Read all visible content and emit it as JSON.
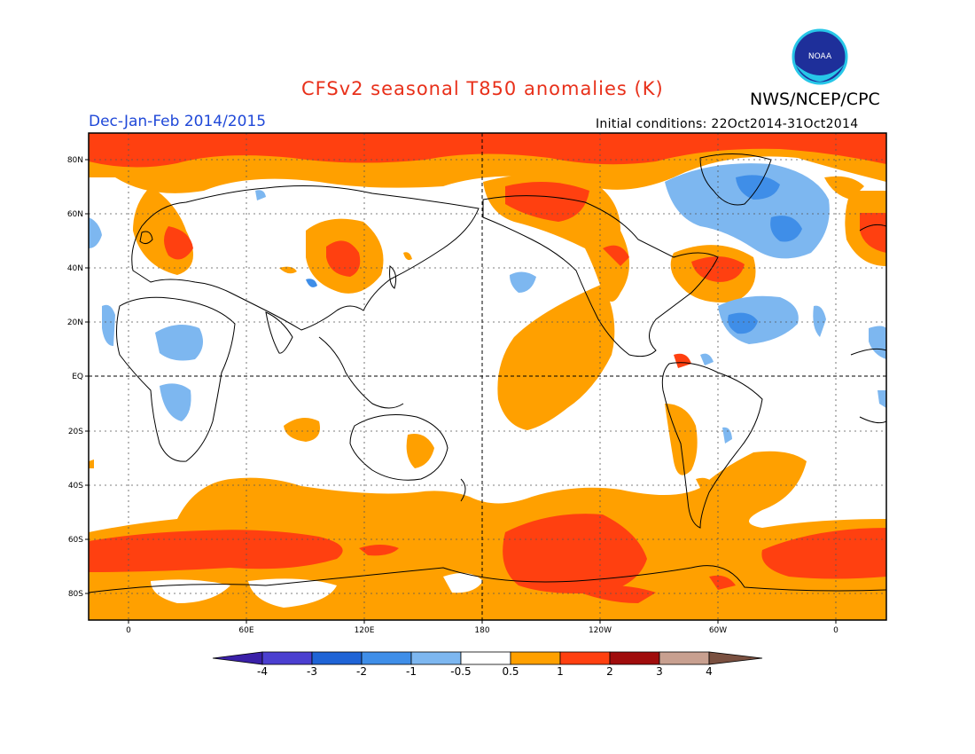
{
  "header": {
    "title": "CFSv2 seasonal T850 anomalies (K)",
    "agency": "NWS/NCEP/CPC",
    "season": "Dec-Jan-Feb 2014/2015",
    "initial_conditions": "Initial conditions: 22Oct2014-31Oct2014"
  },
  "logo": {
    "text": "NOAA"
  },
  "axes": {
    "lat_ticks": [
      "80N",
      "60N",
      "40N",
      "20N",
      "EQ",
      "20S",
      "40S",
      "60S",
      "80S"
    ],
    "lon_ticks": [
      "0",
      "60E",
      "120E",
      "180",
      "120W",
      "60W",
      "0"
    ]
  },
  "colorbar": {
    "labels": [
      "-4",
      "-3",
      "-2",
      "-1",
      "-0.5",
      "0.5",
      "1",
      "2",
      "3",
      "4"
    ],
    "colors": [
      "#3a20a8",
      "#4b3fd0",
      "#1f64d6",
      "#3f8ee8",
      "#7db7f0",
      "#ffffff",
      "#ffa000",
      "#ff4010",
      "#a00c0c",
      "#c8a090",
      "#7a5040"
    ]
  },
  "palette": {
    "warm1": "#ffa000",
    "warm2": "#ff4010",
    "cool1": "#7db7f0",
    "cool2": "#3f8ee8",
    "land_outline": "#000000"
  }
}
